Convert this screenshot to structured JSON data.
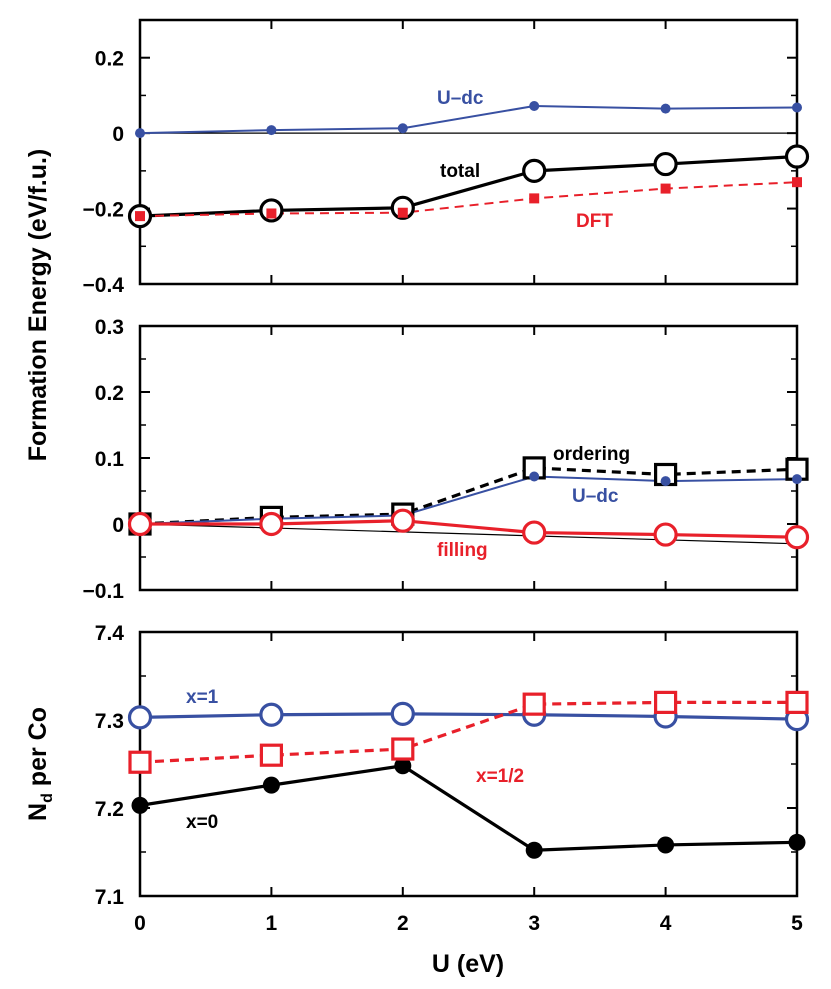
{
  "colors": {
    "black": "#000000",
    "blue": "#3850a2",
    "red": "#e8202a"
  },
  "figure": {
    "ylabel_top": "Formation Energy (eV/f.u.)",
    "ylabel_bottom_main": "N",
    "ylabel_bottom_sub": "d",
    "ylabel_bottom_rest": " per Co",
    "xlabel": "U (eV)"
  },
  "chart_data": [
    {
      "type": "line",
      "panel": "top",
      "x": [
        0,
        1,
        2,
        3,
        4,
        5
      ],
      "xlim": [
        0,
        5
      ],
      "ylim": [
        -0.4,
        0.3
      ],
      "yticks": [
        -0.4,
        -0.2,
        0,
        0.2
      ],
      "ytick_labels": [
        "−0.4",
        "−0.2",
        "0",
        "0.2"
      ],
      "reference_line": {
        "x": [
          0,
          5
        ],
        "y": [
          0,
          0
        ]
      },
      "series": [
        {
          "name": "U–dc",
          "color": "#3850a2",
          "marker": "small-dot",
          "dashed": false,
          "values": [
            0.0,
            0.008,
            0.013,
            0.072,
            0.065,
            0.068
          ]
        },
        {
          "name": "total",
          "color": "#000000",
          "marker": "open-circle",
          "dashed": false,
          "values": [
            -0.22,
            -0.205,
            -0.198,
            -0.1,
            -0.082,
            -0.062
          ]
        },
        {
          "name": "DFT",
          "color": "#e8202a",
          "marker": "small-square",
          "dashed": true,
          "values": [
            -0.22,
            -0.213,
            -0.211,
            -0.173,
            -0.147,
            -0.13
          ]
        }
      ],
      "annotations": [
        "U–dc",
        "total",
        "DFT"
      ]
    },
    {
      "type": "line",
      "panel": "middle",
      "x": [
        0,
        1,
        2,
        3,
        4,
        5
      ],
      "xlim": [
        0,
        5
      ],
      "ylim": [
        -0.1,
        0.3
      ],
      "yticks": [
        -0.1,
        0,
        0.1,
        0.2,
        0.3
      ],
      "ytick_labels": [
        "−0.1",
        "0",
        "0.1",
        "0.2",
        "0.3"
      ],
      "reference_line": {
        "x": [
          0,
          5
        ],
        "y": [
          0,
          -0.03
        ]
      },
      "series": [
        {
          "name": "ordering",
          "color": "#000000",
          "marker": "open-square",
          "dashed": true,
          "values": [
            0.0,
            0.01,
            0.015,
            0.085,
            0.075,
            0.083
          ]
        },
        {
          "name": "U–dc",
          "color": "#3850a2",
          "marker": "small-dot",
          "dashed": false,
          "values": [
            0.0,
            0.008,
            0.013,
            0.072,
            0.065,
            0.068
          ]
        },
        {
          "name": "filling",
          "color": "#e8202a",
          "marker": "open-circle",
          "dashed": false,
          "values": [
            0.0,
            0.0,
            0.005,
            -0.013,
            -0.016,
            -0.02
          ]
        }
      ],
      "annotations": [
        "ordering",
        "U–dc",
        "filling"
      ]
    },
    {
      "type": "line",
      "panel": "bottom",
      "x": [
        0,
        1,
        2,
        3,
        4,
        5
      ],
      "xlim": [
        0,
        5
      ],
      "ylim": [
        7.1,
        7.4
      ],
      "xticks": [
        0,
        1,
        2,
        3,
        4,
        5
      ],
      "xtick_labels": [
        "0",
        "1",
        "2",
        "3",
        "4",
        "5"
      ],
      "yticks": [
        7.1,
        7.2,
        7.3,
        7.4
      ],
      "ytick_labels": [
        "7.1",
        "7.2",
        "7.3",
        "7.4"
      ],
      "series": [
        {
          "name": "x=1",
          "color": "#3850a2",
          "marker": "open-circle",
          "dashed": false,
          "values": [
            7.303,
            7.306,
            7.307,
            7.306,
            7.304,
            7.301
          ]
        },
        {
          "name": "x=0",
          "color": "#000000",
          "marker": "filled-circle",
          "dashed": false,
          "values": [
            7.203,
            7.226,
            7.248,
            7.152,
            7.158,
            7.161
          ]
        },
        {
          "name": "x=1/2",
          "color": "#e8202a",
          "marker": "open-square",
          "dashed": true,
          "values": [
            7.252,
            7.26,
            7.267,
            7.318,
            7.32,
            7.32
          ]
        }
      ],
      "annotations": [
        "x=1",
        "x=1/2",
        "x=0"
      ]
    }
  ]
}
